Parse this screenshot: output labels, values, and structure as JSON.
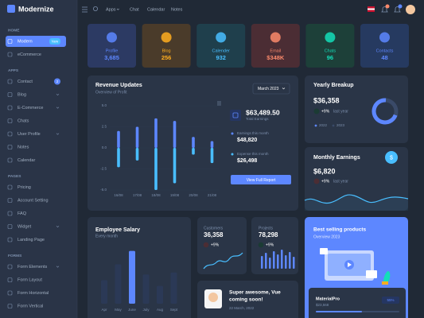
{
  "brand": "Modernize",
  "topnav": [
    "Apps",
    "Chat",
    "Calendar",
    "Notes"
  ],
  "sidebar": [
    {
      "heading": "HOME",
      "items": [
        {
          "label": "Modern",
          "badge": "New",
          "active": true
        },
        {
          "label": "eCommerce"
        }
      ]
    },
    {
      "heading": "APPS",
      "items": [
        {
          "label": "Contact",
          "badge": "2"
        },
        {
          "label": "Blog",
          "expandable": true
        },
        {
          "label": "E-Commerce",
          "expandable": true
        },
        {
          "label": "Chats"
        },
        {
          "label": "User Profile",
          "expandable": true
        },
        {
          "label": "Notes"
        },
        {
          "label": "Calendar"
        }
      ]
    },
    {
      "heading": "PAGES",
      "items": [
        {
          "label": "Pricing"
        },
        {
          "label": "Account Setting"
        },
        {
          "label": "FAQ"
        },
        {
          "label": "Widget",
          "expandable": true
        },
        {
          "label": "Landing Page"
        }
      ]
    },
    {
      "heading": "FORMS",
      "items": [
        {
          "label": "Form Elements",
          "expandable": true
        },
        {
          "label": "Form Layout"
        },
        {
          "label": "Form Horizontal"
        },
        {
          "label": "Form Vertical"
        }
      ]
    }
  ],
  "stats": [
    {
      "label": "Profile",
      "value": "3,685",
      "color": "#5d87ff",
      "bg": "#2c3a63"
    },
    {
      "label": "Blog",
      "value": "256",
      "color": "#ffae1f",
      "bg": "#4a3b2a"
    },
    {
      "label": "Calender",
      "value": "932",
      "color": "#49beff",
      "bg": "#1f3f4c"
    },
    {
      "label": "Email",
      "value": "$348K",
      "color": "#fa896b",
      "bg": "#4b2d34"
    },
    {
      "label": "Chats",
      "value": "96",
      "color": "#13deb9",
      "bg": "#1d4039"
    },
    {
      "label": "Contacts",
      "value": "48",
      "color": "#5d87ff",
      "bg": "#263a60"
    }
  ],
  "revenue": {
    "title": "Revenue Updates",
    "subtitle": "Overview of Profit",
    "period": "March 2023",
    "ylim": [
      -5,
      5
    ],
    "yticks": [
      {
        "value": 5,
        "label": "5.0"
      },
      {
        "value": 2.5,
        "label": "2.5"
      },
      {
        "value": 0,
        "label": "0.0"
      },
      {
        "value": -2.5,
        "label": "-2.5"
      },
      {
        "value": -5,
        "label": "-5.0"
      }
    ],
    "categories": [
      "16/08",
      "17/08",
      "18/08",
      "19/08",
      "20/08",
      "21/08"
    ],
    "earnings": {
      "color": "#5d87ff",
      "values": [
        2.0,
        2.5,
        3.5,
        3.2,
        1.3,
        0.8
      ]
    },
    "expense": {
      "color": "#49beff",
      "values": [
        -2.3,
        -1.5,
        -5.0,
        -4.2,
        -0.8,
        -1.8
      ]
    },
    "total": "$63,489.50",
    "total_label": "Total Earnings",
    "earnings_label": "Earnings this month",
    "earnings_value": "$48,820",
    "expense_label": "Expense this month",
    "expense_value": "$26,498",
    "button": "View Full Report"
  },
  "yearly": {
    "title": "Yearly Breakup",
    "value": "$36,358",
    "change": "+9%",
    "change_note": "last year",
    "legend": [
      "2022",
      "2023"
    ]
  },
  "monthly": {
    "title": "Monthly Earnings",
    "value": "$6,820",
    "change": "+9%",
    "change_note": "last year",
    "icon": "$"
  },
  "salary": {
    "title": "Employee Salary",
    "subtitle": "Every month",
    "categories": [
      "Apr",
      "May",
      "June",
      "July",
      "Aug",
      "Sept"
    ],
    "values": [
      37,
      62,
      83,
      46,
      28,
      49
    ],
    "color": "#2b3956",
    "highlight": 2,
    "highlight_color": "#5d87ff"
  },
  "customers": {
    "title": "Customers",
    "value": "36,358",
    "change": "+9%"
  },
  "projects": {
    "title": "Projects",
    "value": "78,298",
    "change": "+9%"
  },
  "news": {
    "title": "Super awesome, Vue",
    "title2": "coming soon!",
    "date": "22 March, 2022"
  },
  "best": {
    "title": "Best selling products",
    "subtitle": "Overview 2023",
    "product": "MaterialPro",
    "price": "$23,568",
    "percent": "55%"
  }
}
